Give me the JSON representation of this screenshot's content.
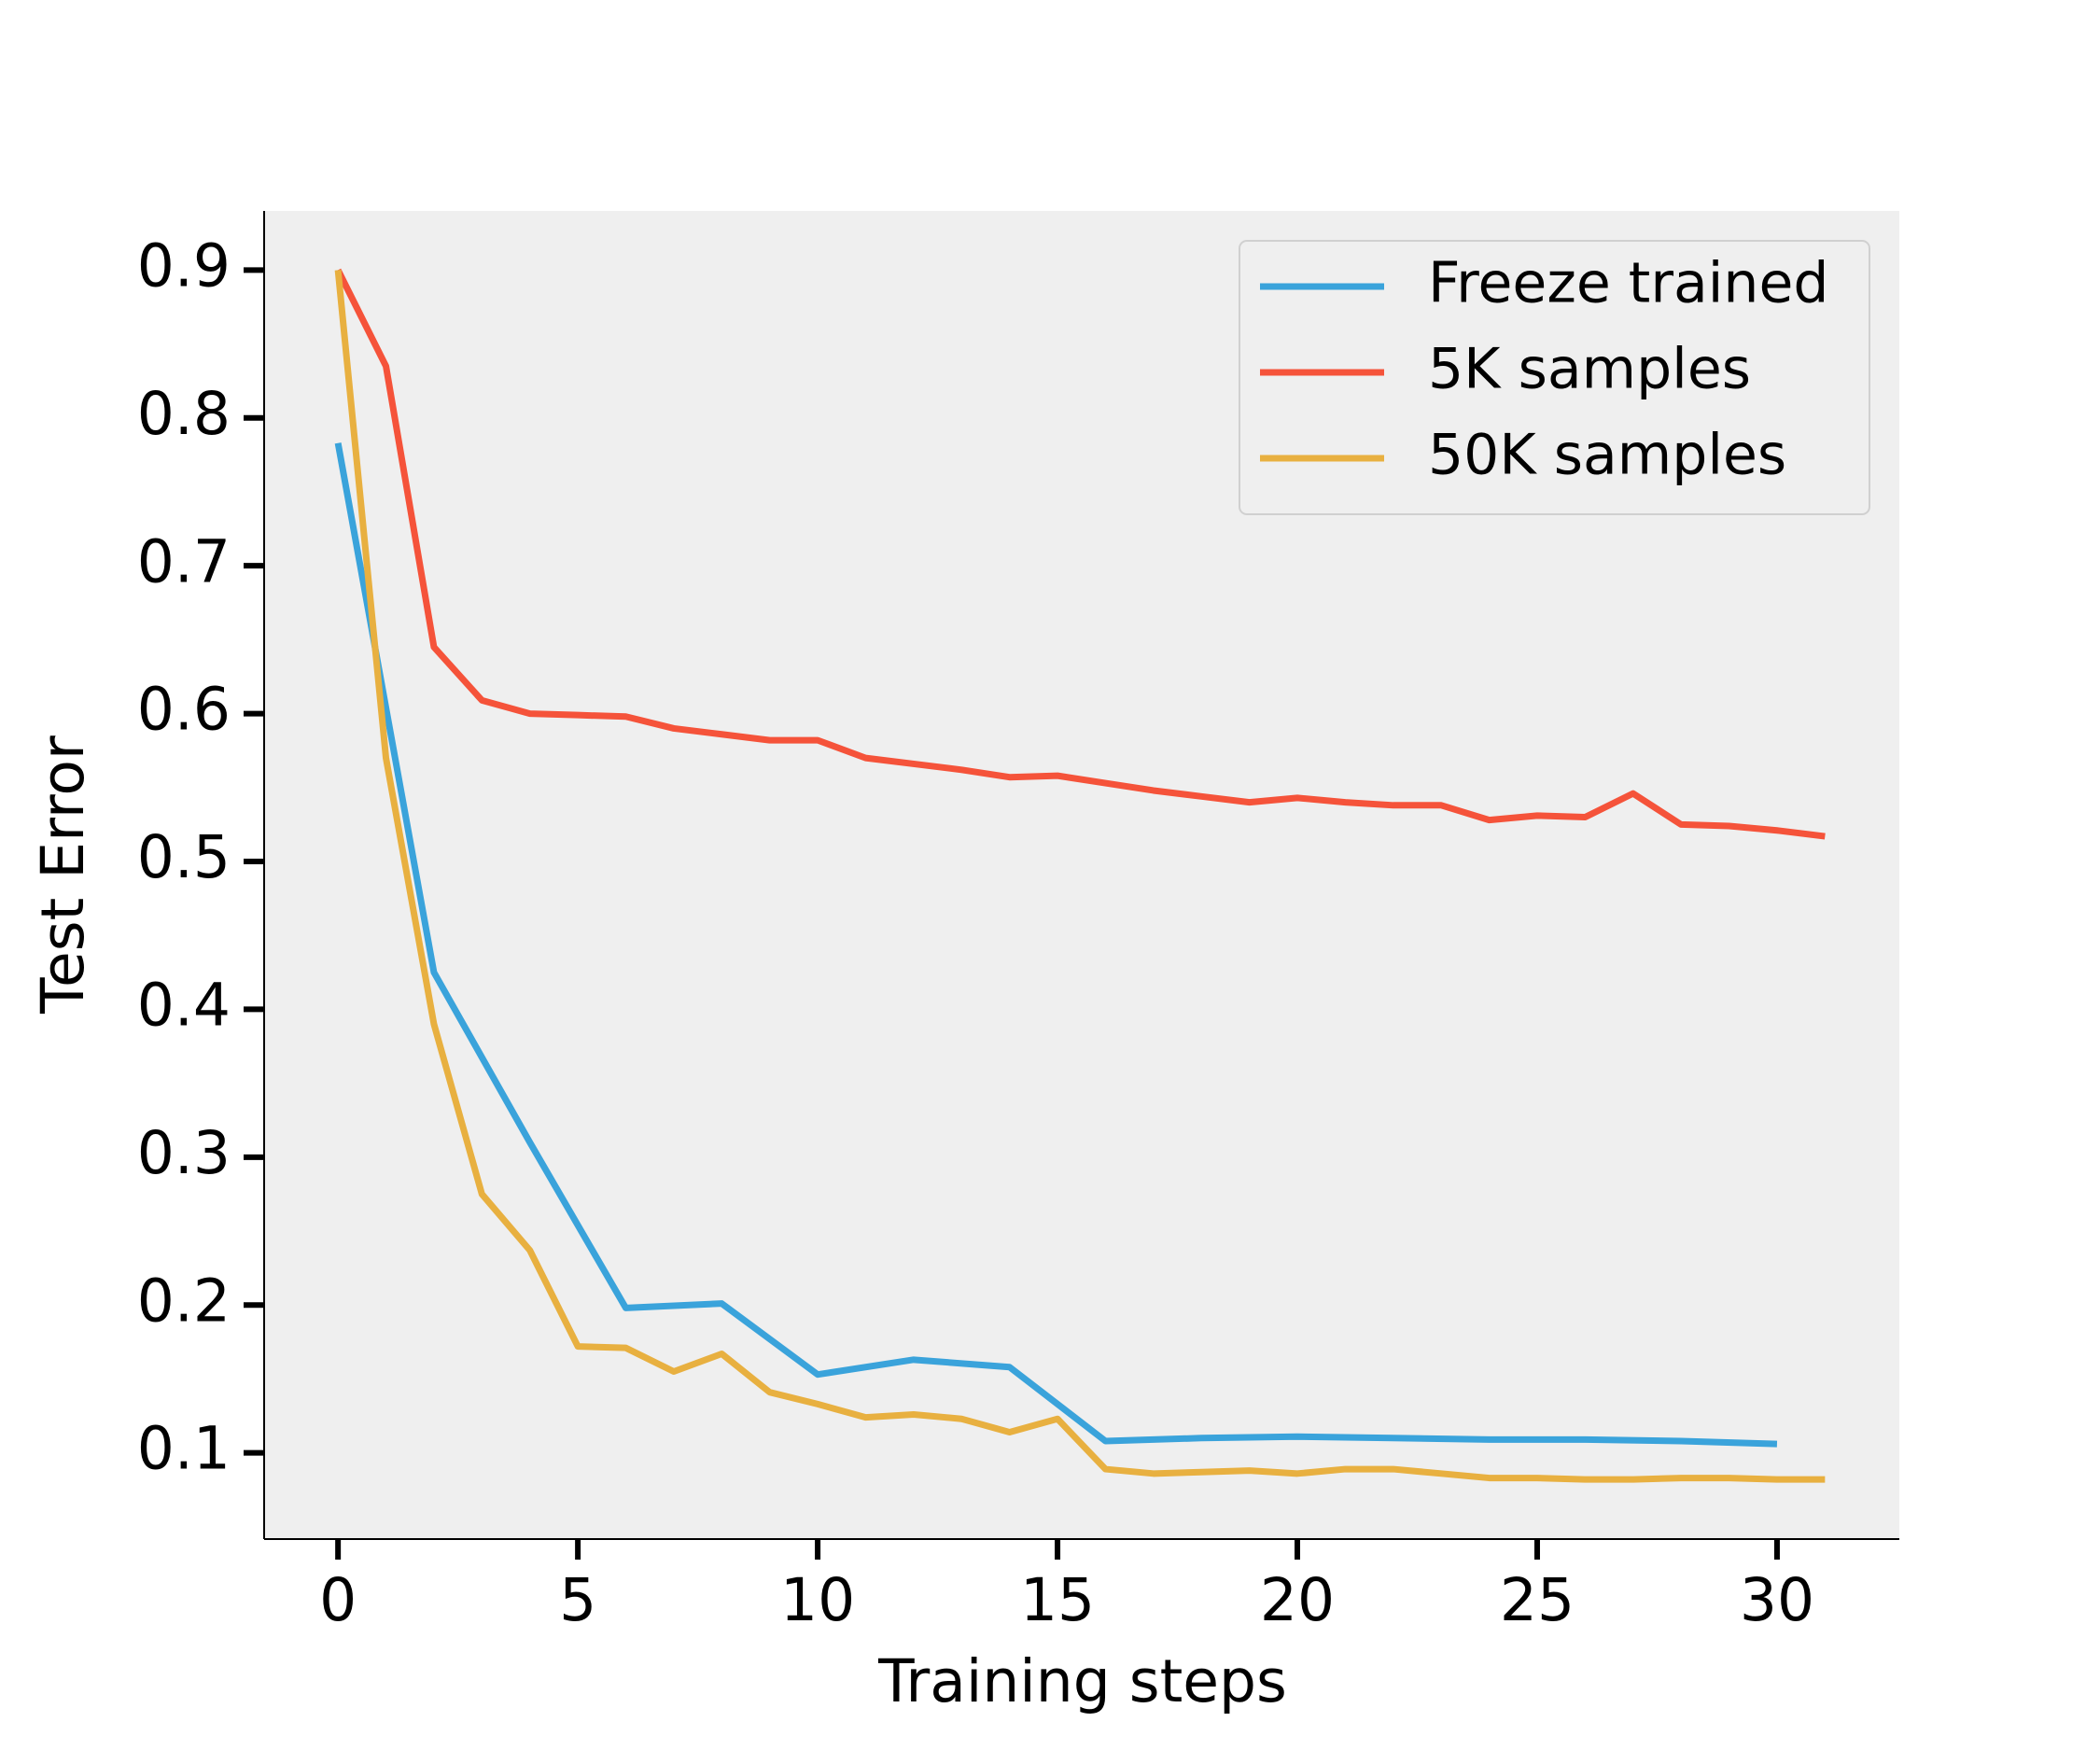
{
  "chart_data": {
    "type": "line",
    "x_label": "Training steps",
    "y_label": "Test Error",
    "xlim": [
      -1.54,
      32.55
    ],
    "ylim": [
      0.0417,
      0.94
    ],
    "xticks": [
      0,
      5,
      10,
      15,
      20,
      25,
      30
    ],
    "yticks": [
      0.1,
      0.2,
      0.3,
      0.4,
      0.5,
      0.6,
      0.7,
      0.8,
      0.9
    ],
    "legend": "upper right",
    "background": "#efefef",
    "series": [
      {
        "name": "Freeze trained",
        "color": "#3aa3db",
        "x": [
          0,
          2,
          4,
          6,
          8,
          10,
          12,
          14,
          16,
          18,
          20,
          22,
          24,
          26,
          28,
          30
        ],
        "values": [
          0.783,
          0.425,
          0.31,
          0.198,
          0.201,
          0.153,
          0.163,
          0.158,
          0.108,
          0.11,
          0.111,
          0.11,
          0.109,
          0.109,
          0.108,
          0.106
        ]
      },
      {
        "name": "5K samples",
        "color": "#f5533a",
        "x": [
          0,
          1,
          2,
          3,
          4,
          5,
          6,
          7,
          8,
          9,
          10,
          11,
          12,
          13,
          14,
          15,
          16,
          17,
          18,
          19,
          20,
          21,
          22,
          23,
          24,
          25,
          26,
          27,
          28,
          29,
          30,
          31
        ],
        "values": [
          0.9,
          0.835,
          0.645,
          0.609,
          0.6,
          0.599,
          0.598,
          0.59,
          0.586,
          0.582,
          0.582,
          0.57,
          0.566,
          0.562,
          0.557,
          0.558,
          0.553,
          0.548,
          0.544,
          0.54,
          0.543,
          0.54,
          0.538,
          0.538,
          0.528,
          0.531,
          0.53,
          0.546,
          0.525,
          0.524,
          0.521,
          0.517
        ]
      },
      {
        "name": "50K samples",
        "color": "#e8b040",
        "x": [
          0,
          1,
          2,
          3,
          4,
          5,
          6,
          7,
          8,
          9,
          10,
          11,
          12,
          13,
          14,
          15,
          16,
          17,
          18,
          19,
          20,
          21,
          22,
          23,
          24,
          25,
          26,
          27,
          28,
          29,
          30,
          31
        ],
        "values": [
          0.9,
          0.57,
          0.39,
          0.275,
          0.237,
          0.172,
          0.171,
          0.155,
          0.167,
          0.141,
          0.133,
          0.124,
          0.126,
          0.123,
          0.114,
          0.123,
          0.089,
          0.086,
          0.087,
          0.088,
          0.086,
          0.089,
          0.089,
          0.086,
          0.083,
          0.083,
          0.082,
          0.082,
          0.083,
          0.083,
          0.082,
          0.082
        ]
      }
    ]
  }
}
